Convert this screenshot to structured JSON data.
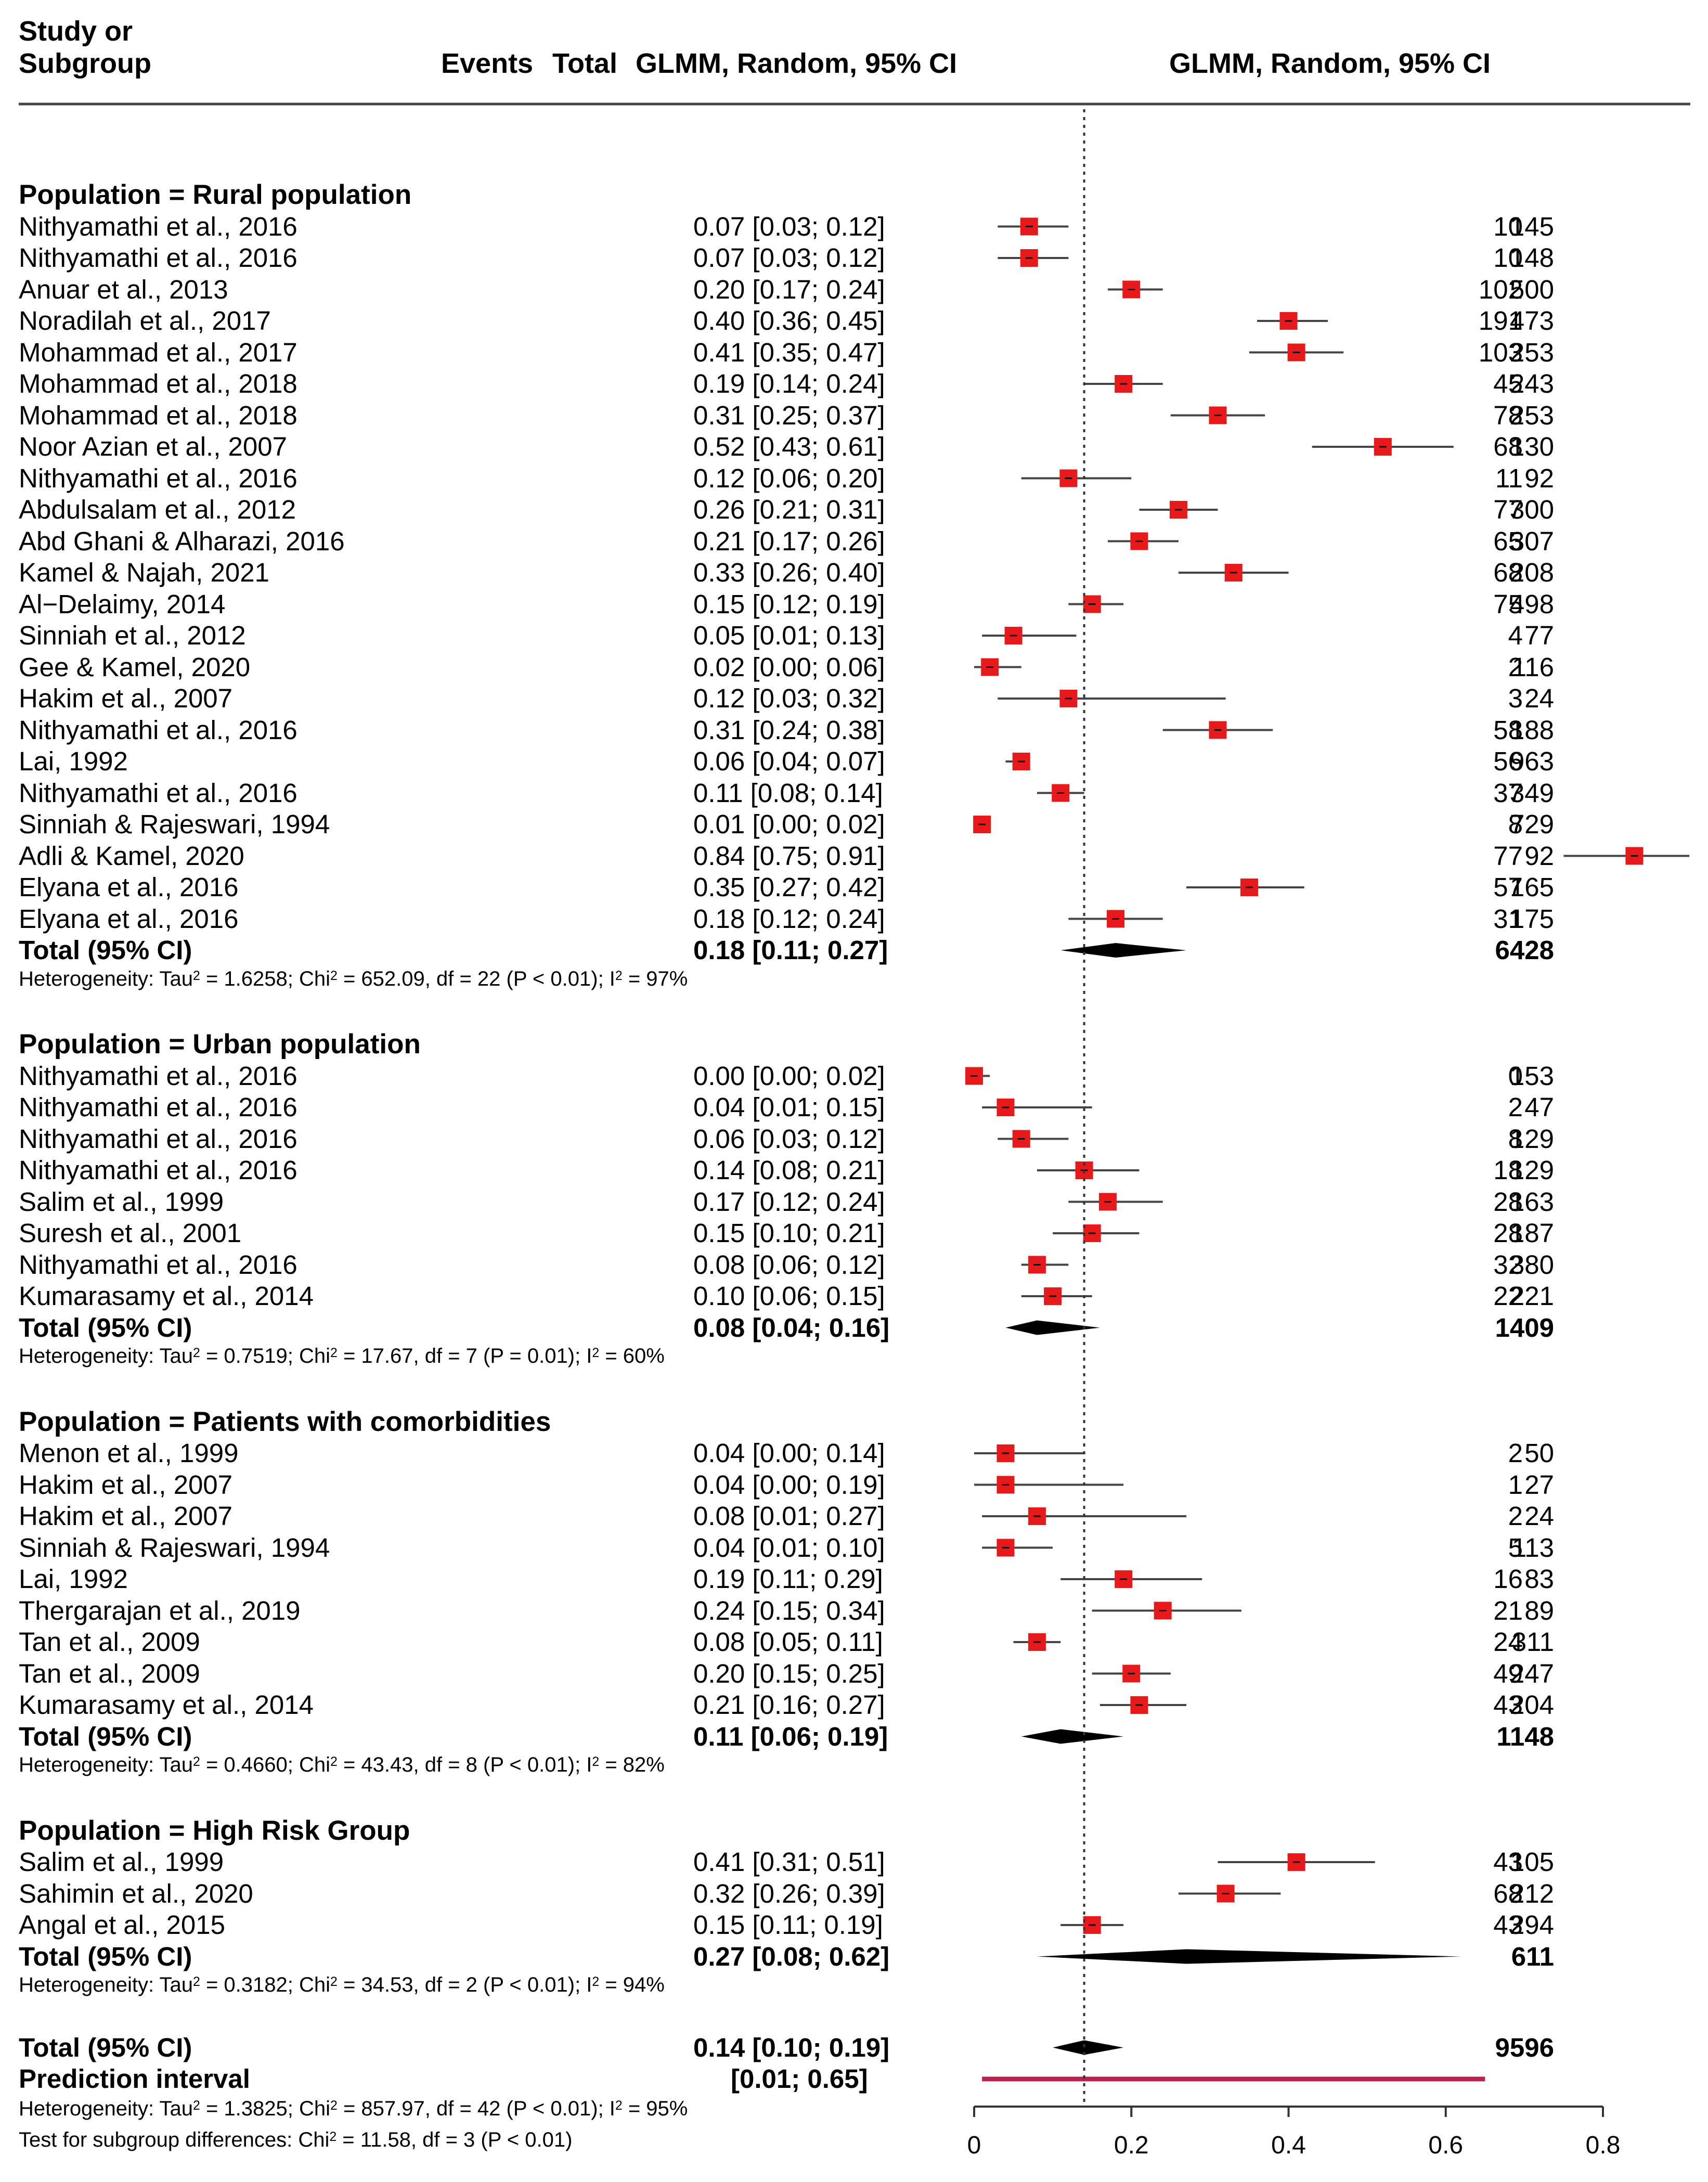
{
  "header": {
    "study_label_line1": "Study or",
    "study_label_line2": "Subgroup",
    "events": "Events",
    "total": "Total",
    "ci_text": "GLMM, Random, 95% CI",
    "plot_title": "GLMM, Random, 95% CI"
  },
  "colors": {
    "square": "#e8191b",
    "diamond": "#000000",
    "prediction": "#b5264c",
    "line": "#444444"
  },
  "chart_data": {
    "type": "forest",
    "title": "GLMM, Random, 95% CI",
    "xlim": [
      0,
      0.8
    ],
    "xticks": [
      "0",
      "0.2",
      "0.4",
      "0.6",
      "0.8"
    ],
    "xtick_values": [
      0,
      0.2,
      0.4,
      0.6,
      0.8
    ],
    "reference_line": 0.14,
    "subgroups": [
      {
        "label": "Population = Rural population",
        "studies": [
          {
            "study": "Nithyamathi et al., 2016",
            "events": "10",
            "total": "145",
            "ci": "0.07 [0.03; 0.12]",
            "est": 0.07,
            "lo": 0.03,
            "hi": 0.12
          },
          {
            "study": "Nithyamathi et al., 2016",
            "events": "10",
            "total": "148",
            "ci": "0.07 [0.03; 0.12]",
            "est": 0.07,
            "lo": 0.03,
            "hi": 0.12
          },
          {
            "study": "Anuar et al., 2013",
            "events": "102",
            "total": "500",
            "ci": "0.20 [0.17; 0.24]",
            "est": 0.2,
            "lo": 0.17,
            "hi": 0.24
          },
          {
            "study": "Noradilah et al., 2017",
            "events": "191",
            "total": "473",
            "ci": "0.40 [0.36; 0.45]",
            "est": 0.4,
            "lo": 0.36,
            "hi": 0.45
          },
          {
            "study": "Mohammad et al., 2017",
            "events": "103",
            "total": "253",
            "ci": "0.41 [0.35; 0.47]",
            "est": 0.41,
            "lo": 0.35,
            "hi": 0.47
          },
          {
            "study": "Mohammad et al., 2018",
            "events": "45",
            "total": "243",
            "ci": "0.19 [0.14; 0.24]",
            "est": 0.19,
            "lo": 0.14,
            "hi": 0.24
          },
          {
            "study": "Mohammad et al., 2018",
            "events": "78",
            "total": "253",
            "ci": "0.31 [0.25; 0.37]",
            "est": 0.31,
            "lo": 0.25,
            "hi": 0.37
          },
          {
            "study": "Noor Azian et al., 2007",
            "events": "68",
            "total": "130",
            "ci": "0.52 [0.43; 0.61]",
            "est": 0.52,
            "lo": 0.43,
            "hi": 0.61
          },
          {
            "study": "Nithyamathi et al., 2016",
            "events": "11",
            "total": "92",
            "ci": "0.12 [0.06; 0.20]",
            "est": 0.12,
            "lo": 0.06,
            "hi": 0.2
          },
          {
            "study": "Abdulsalam et al., 2012",
            "events": "77",
            "total": "300",
            "ci": "0.26 [0.21; 0.31]",
            "est": 0.26,
            "lo": 0.21,
            "hi": 0.31
          },
          {
            "study": "Abd Ghani & Alharazi, 2016",
            "events": "65",
            "total": "307",
            "ci": "0.21 [0.17; 0.26]",
            "est": 0.21,
            "lo": 0.17,
            "hi": 0.26
          },
          {
            "study": "Kamel & Najah, 2021",
            "events": "68",
            "total": "208",
            "ci": "0.33 [0.26; 0.40]",
            "est": 0.33,
            "lo": 0.26,
            "hi": 0.4
          },
          {
            "study": "Al−Delaimy, 2014",
            "events": "75",
            "total": "498",
            "ci": "0.15 [0.12; 0.19]",
            "est": 0.15,
            "lo": 0.12,
            "hi": 0.19
          },
          {
            "study": "Sinniah et al., 2012",
            "events": "4",
            "total": "77",
            "ci": "0.05 [0.01; 0.13]",
            "est": 0.05,
            "lo": 0.01,
            "hi": 0.13
          },
          {
            "study": "Gee & Kamel, 2020",
            "events": "2",
            "total": "116",
            "ci": "0.02 [0.00; 0.06]",
            "est": 0.02,
            "lo": 0.0,
            "hi": 0.06
          },
          {
            "study": "Hakim et al., 2007",
            "events": "3",
            "total": "24",
            "ci": "0.12 [0.03; 0.32]",
            "est": 0.12,
            "lo": 0.03,
            "hi": 0.32
          },
          {
            "study": "Nithyamathi et al., 2016",
            "events": "58",
            "total": "188",
            "ci": "0.31 [0.24; 0.38]",
            "est": 0.31,
            "lo": 0.24,
            "hi": 0.38
          },
          {
            "study": "Lai, 1992",
            "events": "56",
            "total": "963",
            "ci": "0.06 [0.04; 0.07]",
            "est": 0.06,
            "lo": 0.04,
            "hi": 0.07
          },
          {
            "study": "Nithyamathi et al., 2016",
            "events": "37",
            "total": "349",
            "ci": "0.11 [0.08; 0.14]",
            "est": 0.11,
            "lo": 0.08,
            "hi": 0.14
          },
          {
            "study": "Sinniah & Rajeswari, 1994",
            "events": "8",
            "total": "729",
            "ci": "0.01 [0.00; 0.02]",
            "est": 0.01,
            "lo": 0.0,
            "hi": 0.02
          },
          {
            "study": "Adli & Kamel, 2020",
            "events": "77",
            "total": "92",
            "ci": "0.84 [0.75; 0.91]",
            "est": 0.84,
            "lo": 0.75,
            "hi": 0.91
          },
          {
            "study": "Elyana et al., 2016",
            "events": "57",
            "total": "165",
            "ci": "0.35 [0.27; 0.42]",
            "est": 0.35,
            "lo": 0.27,
            "hi": 0.42
          },
          {
            "study": "Elyana et al., 2016",
            "events": "31",
            "total": "175",
            "ci": "0.18 [0.12; 0.24]",
            "est": 0.18,
            "lo": 0.12,
            "hi": 0.24
          }
        ],
        "total": {
          "label": "Total (95% CI)",
          "total": "6428",
          "ci": "0.18 [0.11; 0.27]",
          "est": 0.18,
          "lo": 0.11,
          "hi": 0.27
        },
        "het": {
          "tau2": "1.6258",
          "chi2": "652.09",
          "df": "22",
          "p": "P < 0.01",
          "i2": "97%"
        }
      },
      {
        "label": "Population = Urban population",
        "studies": [
          {
            "study": "Nithyamathi et al., 2016",
            "events": "0",
            "total": "153",
            "ci": "0.00 [0.00; 0.02]",
            "est": 0.0,
            "lo": 0.0,
            "hi": 0.02
          },
          {
            "study": "Nithyamathi et al., 2016",
            "events": "2",
            "total": "47",
            "ci": "0.04 [0.01; 0.15]",
            "est": 0.04,
            "lo": 0.01,
            "hi": 0.15
          },
          {
            "study": "Nithyamathi et al., 2016",
            "events": "8",
            "total": "129",
            "ci": "0.06 [0.03; 0.12]",
            "est": 0.06,
            "lo": 0.03,
            "hi": 0.12
          },
          {
            "study": "Nithyamathi et al., 2016",
            "events": "18",
            "total": "129",
            "ci": "0.14 [0.08; 0.21]",
            "est": 0.14,
            "lo": 0.08,
            "hi": 0.21
          },
          {
            "study": "Salim et al., 1999",
            "events": "28",
            "total": "163",
            "ci": "0.17 [0.12; 0.24]",
            "est": 0.17,
            "lo": 0.12,
            "hi": 0.24
          },
          {
            "study": "Suresh et al., 2001",
            "events": "28",
            "total": "187",
            "ci": "0.15 [0.10; 0.21]",
            "est": 0.15,
            "lo": 0.1,
            "hi": 0.21
          },
          {
            "study": "Nithyamathi et al., 2016",
            "events": "32",
            "total": "380",
            "ci": "0.08 [0.06; 0.12]",
            "est": 0.08,
            "lo": 0.06,
            "hi": 0.12
          },
          {
            "study": "Kumarasamy et al., 2014",
            "events": "22",
            "total": "221",
            "ci": "0.10 [0.06; 0.15]",
            "est": 0.1,
            "lo": 0.06,
            "hi": 0.15
          }
        ],
        "total": {
          "label": "Total (95% CI)",
          "total": "1409",
          "ci": "0.08 [0.04; 0.16]",
          "est": 0.08,
          "lo": 0.04,
          "hi": 0.16
        },
        "het": {
          "tau2": "0.7519",
          "chi2": "17.67",
          "df": "7",
          "p": "P = 0.01",
          "i2": "60%"
        }
      },
      {
        "label": "Population = Patients with comorbidities",
        "studies": [
          {
            "study": "Menon et al., 1999",
            "events": "2",
            "total": "50",
            "ci": "0.04 [0.00; 0.14]",
            "est": 0.04,
            "lo": 0.0,
            "hi": 0.14
          },
          {
            "study": "Hakim et al., 2007",
            "events": "1",
            "total": "27",
            "ci": "0.04 [0.00; 0.19]",
            "est": 0.04,
            "lo": 0.0,
            "hi": 0.19
          },
          {
            "study": "Hakim et al., 2007",
            "events": "2",
            "total": "24",
            "ci": "0.08 [0.01; 0.27]",
            "est": 0.08,
            "lo": 0.01,
            "hi": 0.27
          },
          {
            "study": "Sinniah & Rajeswari, 1994",
            "events": "5",
            "total": "113",
            "ci": "0.04 [0.01; 0.10]",
            "est": 0.04,
            "lo": 0.01,
            "hi": 0.1
          },
          {
            "study": "Lai, 1992",
            "events": "16",
            "total": "83",
            "ci": "0.19 [0.11; 0.29]",
            "est": 0.19,
            "lo": 0.11,
            "hi": 0.29
          },
          {
            "study": "Thergarajan et al., 2019",
            "events": "21",
            "total": "89",
            "ci": "0.24 [0.15; 0.34]",
            "est": 0.24,
            "lo": 0.15,
            "hi": 0.34
          },
          {
            "study": "Tan et al., 2009",
            "events": "24",
            "total": "311",
            "ci": "0.08 [0.05; 0.11]",
            "est": 0.08,
            "lo": 0.05,
            "hi": 0.11
          },
          {
            "study": "Tan et al., 2009",
            "events": "49",
            "total": "247",
            "ci": "0.20 [0.15; 0.25]",
            "est": 0.2,
            "lo": 0.15,
            "hi": 0.25
          },
          {
            "study": "Kumarasamy et al., 2014",
            "events": "43",
            "total": "204",
            "ci": "0.21 [0.16; 0.27]",
            "est": 0.21,
            "lo": 0.16,
            "hi": 0.27
          }
        ],
        "total": {
          "label": "Total (95% CI)",
          "total": "1148",
          "ci": "0.11 [0.06; 0.19]",
          "est": 0.11,
          "lo": 0.06,
          "hi": 0.19
        },
        "het": {
          "tau2": "0.4660",
          "chi2": "43.43",
          "df": "8",
          "p": "P < 0.01",
          "i2": "82%"
        }
      },
      {
        "label": "Population = High Risk Group",
        "studies": [
          {
            "study": "Salim et al., 1999",
            "events": "43",
            "total": "105",
            "ci": "0.41 [0.31; 0.51]",
            "est": 0.41,
            "lo": 0.31,
            "hi": 0.51
          },
          {
            "study": "Sahimin et al., 2020",
            "events": "68",
            "total": "212",
            "ci": "0.32 [0.26; 0.39]",
            "est": 0.32,
            "lo": 0.26,
            "hi": 0.39
          },
          {
            "study": "Angal et al., 2015",
            "events": "43",
            "total": "294",
            "ci": "0.15 [0.11; 0.19]",
            "est": 0.15,
            "lo": 0.11,
            "hi": 0.19
          }
        ],
        "total": {
          "label": "Total (95% CI)",
          "total": "611",
          "ci": "0.27 [0.08; 0.62]",
          "est": 0.27,
          "lo": 0.08,
          "hi": 0.62
        },
        "het": {
          "tau2": "0.3182",
          "chi2": "34.53",
          "df": "2",
          "p": "P < 0.01",
          "i2": "94%"
        }
      }
    ],
    "overall": {
      "label": "Total (95% CI)",
      "total": "9596",
      "ci": "0.14 [0.10; 0.19]",
      "est": 0.14,
      "lo": 0.1,
      "hi": 0.19
    },
    "prediction": {
      "label": "Prediction interval",
      "ci": "[0.01; 0.65]",
      "lo": 0.01,
      "hi": 0.65
    },
    "overall_het": {
      "tau2": "1.3825",
      "chi2": "857.97",
      "df": "42",
      "p": "P < 0.01",
      "i2": "95%"
    },
    "subgroup_test": {
      "chi2": "11.58",
      "df": "3",
      "p": "P < 0.01"
    }
  }
}
